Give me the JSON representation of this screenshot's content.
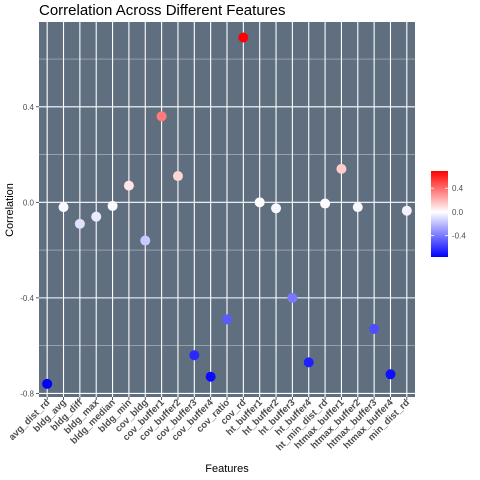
{
  "chart_data": {
    "type": "scatter",
    "title": "Correlation Across Different Features",
    "xlabel": "Features",
    "ylabel": "Correlation",
    "categories": [
      "avg_dist_rd",
      "bldg_avg",
      "bldg_diff",
      "bldg_max",
      "bldg_median",
      "bldg_min",
      "cov_bldg",
      "cov_buffer1",
      "cov_buffer2",
      "cov_buffer3",
      "cov_buffer4",
      "cov_ratio",
      "cov_rd",
      "ht_buffer1",
      "ht_buffer2",
      "ht_buffer3",
      "ht_buffer4",
      "ht_min_dist_rd",
      "htmax_buffer1",
      "htmax_buffer2",
      "htmax_buffer3",
      "htmax_buffer4",
      "min_dist_rd"
    ],
    "values": [
      -0.76,
      -0.02,
      -0.09,
      -0.06,
      -0.015,
      0.07,
      -0.16,
      0.36,
      0.11,
      -0.64,
      -0.73,
      -0.49,
      0.69,
      0.0,
      -0.025,
      -0.4,
      -0.67,
      -0.005,
      0.14,
      -0.02,
      -0.53,
      -0.72,
      -0.035
    ],
    "ylim": [
      -0.815,
      0.755
    ],
    "y_ticks": [
      -0.8,
      -0.4,
      0.0,
      0.4
    ],
    "y_tick_labels": [
      "-0.8",
      "-0.4",
      "0.0",
      "0.4"
    ],
    "grid": true,
    "panel_color": "#5f6f80",
    "legend": {
      "placement": "right",
      "ticks": [
        0.4,
        0.0,
        -0.4
      ],
      "tick_labels": [
        "0.4",
        "0.0",
        "-0.4"
      ],
      "low_color": "#0000ff",
      "mid_color": "#ffffff",
      "high_color": "#ff0000",
      "min": -0.76,
      "max": 0.69
    }
  }
}
